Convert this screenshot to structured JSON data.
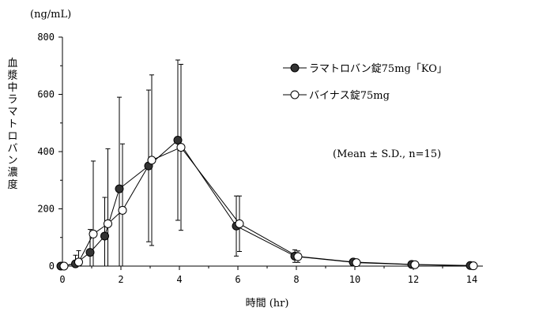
{
  "chart_data": {
    "type": "line",
    "title": "",
    "ylabel": "血漿中ラマトロバン濃度",
    "yunit": "(ng/mL)",
    "xlabel": "時間 (hr)",
    "xlim": [
      0,
      14
    ],
    "ylim": [
      0,
      800
    ],
    "xticks": [
      0,
      2,
      4,
      6,
      8,
      10,
      12,
      14
    ],
    "yticks": [
      0,
      200,
      400,
      600,
      800
    ],
    "grid": false,
    "annotation": "(Mean ± S.D., n=15)",
    "legend_position": "top-right",
    "series": [
      {
        "name": "ラマトロバン錠75mg「KO」",
        "marker": "filled-circle",
        "color": "#000000",
        "x": [
          0,
          0.5,
          1,
          1.5,
          2,
          3,
          4,
          6,
          8,
          10,
          12,
          14
        ],
        "y": [
          0,
          8,
          48,
          105,
          270,
          350,
          440,
          140,
          35,
          14,
          6,
          2
        ],
        "err": [
          0,
          30,
          80,
          135,
          320,
          265,
          280,
          105,
          22,
          6,
          3,
          1
        ]
      },
      {
        "name": "バイナス錠75mg",
        "marker": "open-circle",
        "color": "#000000",
        "x": [
          0,
          0.5,
          1,
          1.5,
          2,
          3,
          4,
          6,
          8,
          10,
          12,
          14
        ],
        "y": [
          0,
          14,
          112,
          148,
          195,
          370,
          415,
          148,
          33,
          12,
          5,
          1
        ],
        "err": [
          0,
          40,
          255,
          262,
          232,
          298,
          290,
          97,
          20,
          5,
          3,
          1
        ]
      }
    ]
  }
}
